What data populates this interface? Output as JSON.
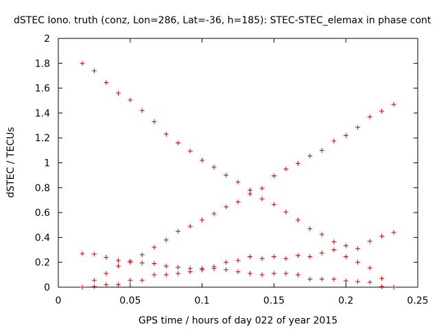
{
  "chart_data": {
    "type": "scatter",
    "title": "dSTEC Iono. truth (conz, Lon=286, Lat=-36, h=185): STEC-STEC_elemax in phase cont",
    "xlabel": "GPS time / hours of day 022 of year 2015",
    "ylabel": "dSTEC  / TECUs",
    "xlim": [
      0,
      0.25
    ],
    "ylim": [
      0,
      2
    ],
    "x_ticks": [
      "0",
      "0.05",
      "0.1",
      "0.15",
      "0.2",
      "0.25"
    ],
    "y_ticks": [
      "0",
      "0.2",
      "0.4",
      "0.6",
      "0.8",
      "1",
      "1.2",
      "1.4",
      "1.6",
      "1.8",
      "2"
    ],
    "grid": false,
    "marker": "+",
    "marker_color": "#cc0000",
    "series": [
      {
        "points": [
          [
            0.0167,
            1.8
          ],
          [
            0.025,
            1.74
          ],
          [
            0.0333,
            1.645
          ],
          [
            0.0417,
            1.56
          ],
          [
            0.05,
            1.505
          ],
          [
            0.0583,
            1.42
          ],
          [
            0.0667,
            1.33
          ],
          [
            0.075,
            1.23
          ],
          [
            0.0833,
            1.16
          ],
          [
            0.0917,
            1.095
          ],
          [
            0.1,
            1.02
          ],
          [
            0.1083,
            0.965
          ],
          [
            0.1167,
            0.9
          ],
          [
            0.125,
            0.845
          ],
          [
            0.1333,
            0.75
          ],
          [
            0.1417,
            0.71
          ],
          [
            0.15,
            0.665
          ],
          [
            0.1583,
            0.605
          ],
          [
            0.1667,
            0.54
          ],
          [
            0.175,
            0.47
          ],
          [
            0.1833,
            0.425
          ],
          [
            0.1917,
            0.365
          ],
          [
            0.2,
            0.245
          ],
          [
            0.2083,
            0.2
          ],
          [
            0.2167,
            0.155
          ],
          [
            0.225,
            0.07
          ],
          [
            0.2333,
            0.0
          ]
        ]
      },
      {
        "points": [
          [
            0.0167,
            0.0
          ],
          [
            0.025,
            0.055
          ],
          [
            0.0333,
            0.11
          ],
          [
            0.0417,
            0.17
          ],
          [
            0.05,
            0.21
          ],
          [
            0.0583,
            0.26
          ],
          [
            0.0667,
            0.32
          ],
          [
            0.075,
            0.38
          ],
          [
            0.0833,
            0.45
          ],
          [
            0.0917,
            0.49
          ],
          [
            0.1,
            0.54
          ],
          [
            0.1083,
            0.59
          ],
          [
            0.1167,
            0.645
          ],
          [
            0.125,
            0.685
          ],
          [
            0.1333,
            0.78
          ],
          [
            0.1417,
            0.795
          ],
          [
            0.15,
            0.895
          ],
          [
            0.1583,
            0.95
          ],
          [
            0.1667,
            0.995
          ],
          [
            0.175,
            1.055
          ],
          [
            0.1833,
            1.1
          ],
          [
            0.1917,
            1.175
          ],
          [
            0.2,
            1.22
          ],
          [
            0.2083,
            1.285
          ],
          [
            0.2167,
            1.37
          ],
          [
            0.225,
            1.415
          ],
          [
            0.2333,
            1.47
          ]
        ]
      },
      {
        "points": [
          [
            0.0167,
            0.27
          ],
          [
            0.025,
            0.265
          ],
          [
            0.0333,
            0.24
          ],
          [
            0.0417,
            0.215
          ],
          [
            0.05,
            0.2
          ],
          [
            0.0583,
            0.195
          ],
          [
            0.0667,
            0.19
          ],
          [
            0.075,
            0.17
          ],
          [
            0.0833,
            0.16
          ],
          [
            0.0917,
            0.15
          ],
          [
            0.1,
            0.14
          ],
          [
            0.1083,
            0.15
          ],
          [
            0.1167,
            0.14
          ],
          [
            0.125,
            0.125
          ],
          [
            0.1333,
            0.11
          ],
          [
            0.1417,
            0.1
          ],
          [
            0.15,
            0.11
          ],
          [
            0.1583,
            0.11
          ],
          [
            0.1667,
            0.1
          ],
          [
            0.175,
            0.065
          ],
          [
            0.1833,
            0.065
          ],
          [
            0.1917,
            0.065
          ],
          [
            0.2,
            0.05
          ],
          [
            0.2083,
            0.045
          ],
          [
            0.2167,
            0.04
          ],
          [
            0.225,
            0.005
          ]
        ]
      },
      {
        "points": [
          [
            0.025,
            0.005
          ],
          [
            0.0333,
            0.02
          ],
          [
            0.0417,
            0.02
          ],
          [
            0.05,
            0.055
          ],
          [
            0.0583,
            0.055
          ],
          [
            0.0667,
            0.1
          ],
          [
            0.075,
            0.1
          ],
          [
            0.0833,
            0.11
          ],
          [
            0.0917,
            0.125
          ],
          [
            0.1,
            0.15
          ],
          [
            0.1083,
            0.165
          ],
          [
            0.1167,
            0.2
          ],
          [
            0.125,
            0.215
          ],
          [
            0.1333,
            0.245
          ],
          [
            0.1417,
            0.23
          ],
          [
            0.15,
            0.245
          ],
          [
            0.1583,
            0.23
          ],
          [
            0.1667,
            0.255
          ],
          [
            0.175,
            0.245
          ],
          [
            0.1833,
            0.275
          ],
          [
            0.1917,
            0.3
          ],
          [
            0.2,
            0.335
          ],
          [
            0.2083,
            0.31
          ],
          [
            0.2167,
            0.37
          ],
          [
            0.225,
            0.41
          ],
          [
            0.2333,
            0.44
          ]
        ]
      }
    ]
  }
}
